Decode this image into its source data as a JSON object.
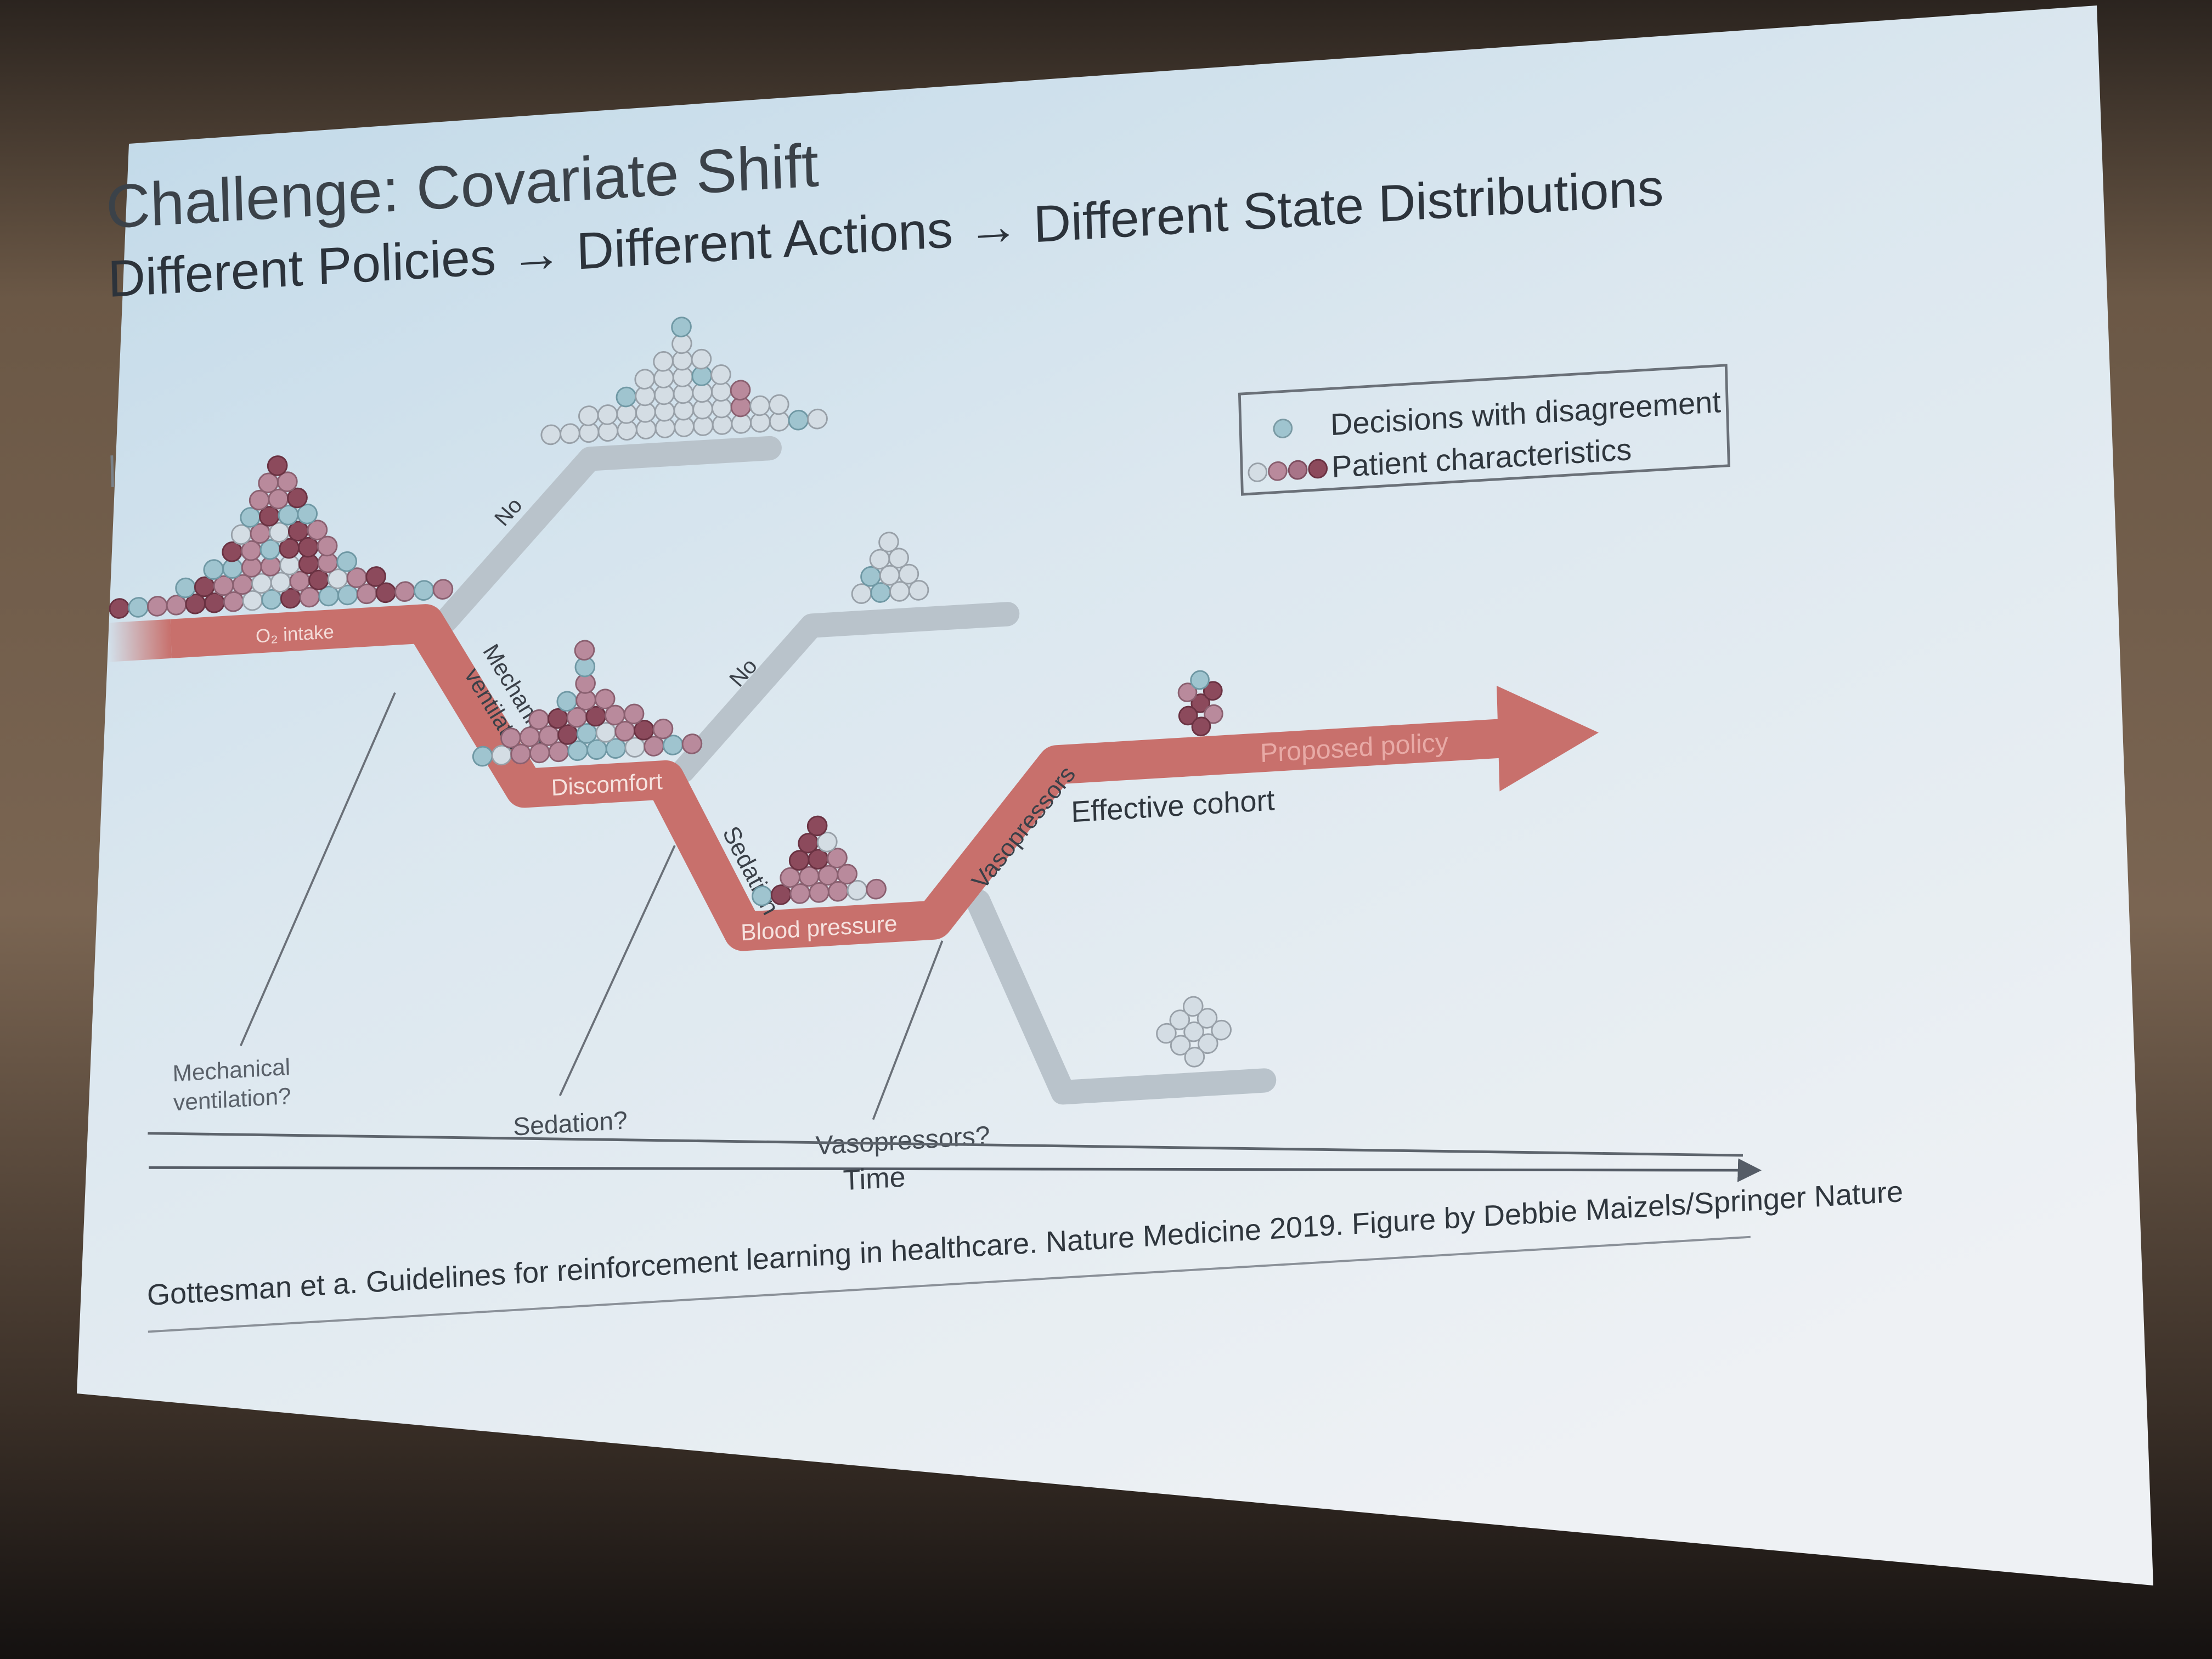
{
  "slide": {
    "title": "Challenge: Covariate Shift",
    "subtitle": "Different Policies → Different Actions → Different State Distributions",
    "citation": "Gottesman et a. Guidelines for reinforcement learning in healthcare. Nature Medicine 2019. Figure by Debbie Maizels/Springer Nature"
  },
  "legend": {
    "disagreement": "Decisions with disagreement",
    "patients": "Patient characteristics"
  },
  "stages": {
    "o2": "O₂ intake",
    "discomfort": "Discomfort",
    "blood_pressure": "Blood pressure",
    "proposed": "Proposed policy",
    "effective": "Effective cohort"
  },
  "actions": {
    "mech": [
      "Mechanical",
      "ventilation"
    ],
    "sedation": "Sedation",
    "vaso": "Vasopressors",
    "no": "No"
  },
  "questions": {
    "mech": [
      "Mechanical",
      "ventilation?"
    ],
    "sedation": "Sedation?",
    "vaso": "Vasopressors?"
  },
  "axis": {
    "time": "Time"
  },
  "colors": {
    "policy": "#c8706c",
    "branch": "#b9c3cb",
    "dot_pink": "#b98a9c",
    "dot_maroon": "#8c4a5c",
    "dot_teal": "#9fc4cf",
    "dot_grey": "#d4dde4",
    "text": "#353c44"
  }
}
